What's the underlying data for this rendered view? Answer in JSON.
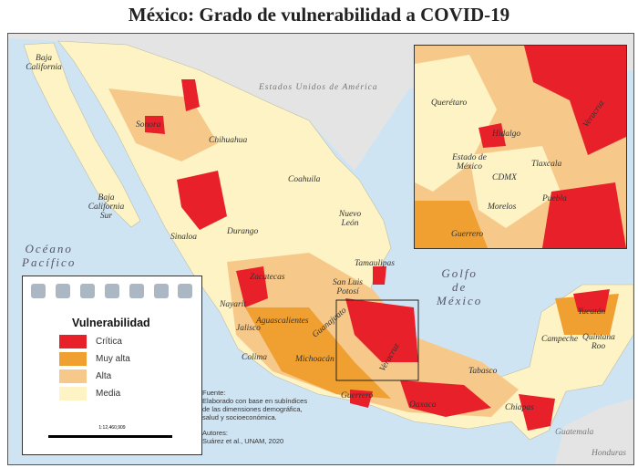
{
  "title": "México: Grado de vulnerabilidad a COVID-19",
  "legend": {
    "title": "Vulnerabilidad",
    "items": [
      {
        "label": "Crítica",
        "color": "#e8202a"
      },
      {
        "label": "Muy alta",
        "color": "#f0a030"
      },
      {
        "label": "Alta",
        "color": "#f6c98a"
      },
      {
        "label": "Media",
        "color": "#fdf3c4"
      }
    ],
    "scale": "1:12,460,909"
  },
  "source": {
    "heading": "Fuente:",
    "lines": [
      "Elaborado con base en subíndices",
      "de las dimensiones demográfica,",
      "salud y socioeconómica."
    ],
    "authors_heading": "Autores:",
    "authors": "Suárez et al., UNAM, 2020"
  },
  "seas": {
    "pacific": "Océano\nPacífico",
    "gulf": "Golfo\nde\nMéxico",
    "usa": "Estados Unidos de América",
    "guatemala": "Guatemala",
    "honduras": "Honduras"
  },
  "states": [
    "Baja California",
    "Sonora",
    "Chihuahua",
    "Coahuila",
    "Baja California Sur",
    "Sinaloa",
    "Durango",
    "Nuevo León",
    "Tamaulipas",
    "Zacatecas",
    "San Luis Potosí",
    "Nayarit",
    "Aguascalientes",
    "Jalisco",
    "Guanajuato",
    "Colima",
    "Michoacán",
    "Guerrero",
    "Oaxaca",
    "Veracruz",
    "Tabasco",
    "Chiapas",
    "Campeche",
    "Yucatán",
    "Quintana Roo"
  ],
  "inset_states": [
    "Querétaro",
    "Hidalgo",
    "Veracruz",
    "Estado de México",
    "CDMX",
    "Tlaxcala",
    "Puebla",
    "Morelos",
    "Guerrero"
  ]
}
